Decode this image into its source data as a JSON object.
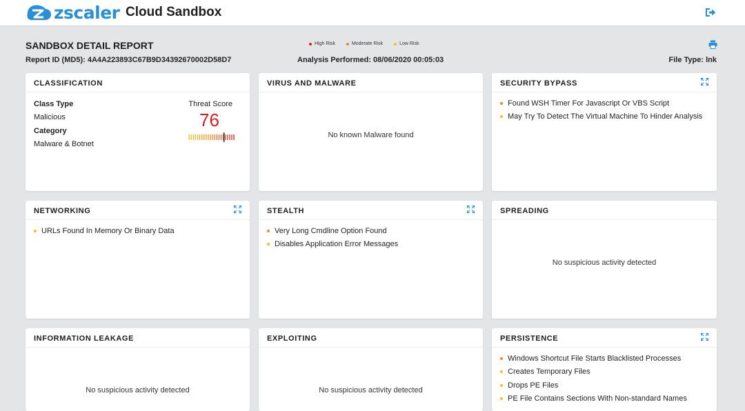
{
  "header": {
    "brand": "zscaler",
    "app_title": "Cloud Sandbox",
    "brand_color": "#2a8fd4"
  },
  "report": {
    "title": "SANDBOX DETAIL REPORT",
    "report_id": "Report ID (MD5): 4A4A223893C67B9D34392670002D58D7",
    "analysis": "Analysis Performed: 08/06/2020 00:05:03",
    "file_type": "File Type: lnk"
  },
  "legend": [
    {
      "label": "High Risk",
      "color": "#e02020"
    },
    {
      "label": "Moderate Risk",
      "color": "#f08a1c"
    },
    {
      "label": "Low Risk",
      "color": "#f2c318"
    }
  ],
  "classification": {
    "title": "CLASSIFICATION",
    "class_type_label": "Class Type",
    "class_type_value": "Malicious",
    "category_label": "Category",
    "category_value": "Malware & Botnet",
    "threat_score_label": "Threat Score",
    "threat_score": "76",
    "threat_score_fraction": 0.76
  },
  "cards": {
    "virus": {
      "title": "VIRUS AND MALWARE",
      "message": "No known Malware found"
    },
    "security_bypass": {
      "title": "SECURITY BYPASS",
      "items": [
        {
          "text": "Found WSH Timer For Javascript Or VBS Script",
          "risk": "moderate"
        },
        {
          "text": "May Try To Detect The Virtual Machine To Hinder Analysis",
          "risk": "low"
        }
      ]
    },
    "networking": {
      "title": "NETWORKING",
      "items": [
        {
          "text": "URLs Found In Memory Or Binary Data",
          "risk": "low"
        }
      ]
    },
    "stealth": {
      "title": "STEALTH",
      "items": [
        {
          "text": "Very Long Cmdline Option Found",
          "risk": "moderate"
        },
        {
          "text": "Disables Application Error Messages",
          "risk": "low"
        }
      ]
    },
    "spreading": {
      "title": "SPREADING",
      "message": "No suspicious activity detected"
    },
    "information_leakage": {
      "title": "INFORMATION LEAKAGE",
      "message": "No suspicious activity detected"
    },
    "exploiting": {
      "title": "EXPLOITING",
      "message": "No suspicious activity detected"
    },
    "persistence": {
      "title": "PERSISTENCE",
      "items": [
        {
          "text": "Windows Shortcut File Starts Blacklisted Processes",
          "risk": "moderate"
        },
        {
          "text": "Creates Temporary Files",
          "risk": "low"
        },
        {
          "text": "Drops PE Files",
          "risk": "low"
        },
        {
          "text": "PE File Contains Sections With Non-standard Names",
          "risk": "low"
        }
      ]
    }
  },
  "icons": {
    "logout": "logout-icon",
    "print": "printer-icon",
    "expand": "expand-icon"
  }
}
